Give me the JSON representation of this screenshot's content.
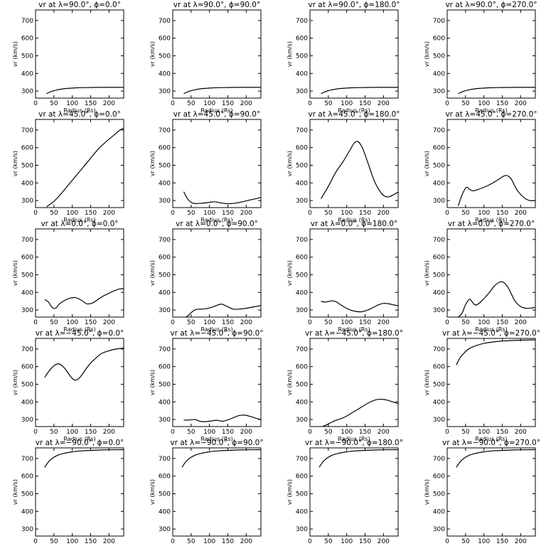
{
  "chart_data": [
    {
      "type": "line",
      "title": "vr at λ=90.0°, ϕ=0.0°",
      "xlabel": "Radius (Rs)",
      "ylabel": "vr (km/s)",
      "xlim": [
        0,
        240
      ],
      "ylim": [
        260,
        760
      ],
      "xticks": [
        0,
        50,
        100,
        150,
        200
      ],
      "yticks": [
        300,
        400,
        500,
        600,
        700
      ],
      "series": [
        {
          "x": [
            30,
            40,
            50,
            60,
            70,
            80,
            100,
            120,
            150,
            180,
            210,
            240
          ],
          "y": [
            285,
            295,
            302,
            307,
            311,
            314,
            317,
            319,
            320,
            321,
            321,
            321
          ]
        }
      ]
    },
    {
      "type": "line",
      "title": "vr at λ=90.0°, ϕ=90.0°",
      "xlabel": "Radius (Rs)",
      "ylabel": "vr (km/s)",
      "xlim": [
        0,
        240
      ],
      "ylim": [
        260,
        760
      ],
      "xticks": [
        0,
        50,
        100,
        150,
        200
      ],
      "yticks": [
        300,
        400,
        500,
        600,
        700
      ],
      "series": [
        {
          "x": [
            30,
            40,
            50,
            60,
            70,
            80,
            100,
            120,
            150,
            180,
            210,
            240
          ],
          "y": [
            285,
            295,
            302,
            307,
            311,
            314,
            317,
            319,
            320,
            321,
            321,
            321
          ]
        }
      ]
    },
    {
      "type": "line",
      "title": "vr at λ=90.0°, ϕ=180.0°",
      "xlabel": "Radius (Rs)",
      "ylabel": "vr (km/s)",
      "xlim": [
        0,
        240
      ],
      "ylim": [
        260,
        760
      ],
      "xticks": [
        0,
        50,
        100,
        150,
        200
      ],
      "yticks": [
        300,
        400,
        500,
        600,
        700
      ],
      "series": [
        {
          "x": [
            30,
            40,
            50,
            60,
            70,
            80,
            100,
            120,
            150,
            180,
            210,
            240
          ],
          "y": [
            285,
            295,
            302,
            307,
            311,
            314,
            317,
            319,
            320,
            321,
            321,
            321
          ]
        }
      ]
    },
    {
      "type": "line",
      "title": "vr at λ=90.0°, ϕ=270.0°",
      "xlabel": "Radius (Rs)",
      "ylabel": "vr (km/s)",
      "xlim": [
        0,
        240
      ],
      "ylim": [
        260,
        760
      ],
      "xticks": [
        0,
        50,
        100,
        150,
        200
      ],
      "yticks": [
        300,
        400,
        500,
        600,
        700
      ],
      "series": [
        {
          "x": [
            30,
            40,
            50,
            60,
            70,
            80,
            100,
            120,
            150,
            180,
            210,
            240
          ],
          "y": [
            285,
            295,
            302,
            307,
            311,
            314,
            317,
            319,
            320,
            321,
            321,
            321
          ]
        }
      ]
    },
    {
      "type": "line",
      "title": "vr at λ=45.0°, ϕ=0.0°",
      "xlabel": "Radius (Rs)",
      "ylabel": "vr (km/s)",
      "xlim": [
        0,
        240
      ],
      "ylim": [
        260,
        760
      ],
      "xticks": [
        0,
        50,
        100,
        150,
        200
      ],
      "yticks": [
        300,
        400,
        500,
        600,
        700
      ],
      "series": [
        {
          "x": [
            30,
            50,
            70,
            90,
            110,
            130,
            150,
            170,
            190,
            210,
            230,
            240
          ],
          "y": [
            265,
            295,
            340,
            390,
            440,
            490,
            540,
            590,
            630,
            665,
            700,
            710
          ]
        }
      ]
    },
    {
      "type": "line",
      "title": "vr at λ=45.0°, ϕ=90.0°",
      "xlabel": "Radius (Rs)",
      "ylabel": "vr (km/s)",
      "xlim": [
        0,
        240
      ],
      "ylim": [
        260,
        760
      ],
      "xticks": [
        0,
        50,
        100,
        150,
        200
      ],
      "yticks": [
        300,
        400,
        500,
        600,
        700
      ],
      "series": [
        {
          "x": [
            30,
            40,
            50,
            60,
            80,
            100,
            115,
            130,
            150,
            170,
            190,
            210,
            230,
            240
          ],
          "y": [
            350,
            310,
            290,
            283,
            285,
            290,
            293,
            287,
            282,
            285,
            293,
            303,
            312,
            318
          ]
        }
      ]
    },
    {
      "type": "line",
      "title": "vr at λ=45.0°, ϕ=180.0°",
      "xlabel": "Radius (Rs)",
      "ylabel": "vr (km/s)",
      "xlim": [
        0,
        240
      ],
      "ylim": [
        260,
        760
      ],
      "xticks": [
        0,
        50,
        100,
        150,
        200
      ],
      "yticks": [
        300,
        400,
        500,
        600,
        700
      ],
      "series": [
        {
          "x": [
            30,
            50,
            70,
            90,
            110,
            120,
            130,
            140,
            150,
            160,
            170,
            180,
            195,
            210,
            225,
            240
          ],
          "y": [
            310,
            380,
            460,
            520,
            590,
            625,
            635,
            610,
            560,
            500,
            440,
            390,
            340,
            320,
            330,
            348
          ]
        }
      ]
    },
    {
      "type": "line",
      "title": "vr at λ=45.0°, ϕ=270.0°",
      "xlabel": "Radius (Rs)",
      "ylabel": "vr (km/s)",
      "xlim": [
        0,
        240
      ],
      "ylim": [
        260,
        760
      ],
      "xticks": [
        0,
        50,
        100,
        150,
        200
      ],
      "yticks": [
        300,
        400,
        500,
        600,
        700
      ],
      "series": [
        {
          "x": [
            30,
            40,
            50,
            55,
            60,
            70,
            80,
            100,
            120,
            140,
            155,
            165,
            175,
            190,
            210,
            225,
            240
          ],
          "y": [
            270,
            330,
            370,
            375,
            365,
            355,
            360,
            375,
            395,
            420,
            440,
            440,
            420,
            360,
            315,
            300,
            300
          ]
        }
      ]
    },
    {
      "type": "line",
      "title": "vr at λ=0.0°, ϕ=0.0°",
      "xlabel": "Radius (Rs)",
      "ylabel": "vr (km/s)",
      "xlim": [
        0,
        240
      ],
      "ylim": [
        260,
        760
      ],
      "xticks": [
        0,
        50,
        100,
        150,
        200
      ],
      "yticks": [
        300,
        400,
        500,
        600,
        700
      ],
      "series": [
        {
          "x": [
            25,
            35,
            45,
            55,
            65,
            80,
            95,
            110,
            125,
            140,
            155,
            170,
            185,
            200,
            215,
            230,
            240
          ],
          "y": [
            360,
            345,
            315,
            310,
            335,
            355,
            368,
            370,
            355,
            335,
            340,
            360,
            380,
            395,
            410,
            420,
            420
          ]
        }
      ]
    },
    {
      "type": "line",
      "title": "vr at λ=0.0°, ϕ=90.0°",
      "xlabel": "Radius (Rs)",
      "ylabel": "vr (km/s)",
      "xlim": [
        0,
        240
      ],
      "ylim": [
        260,
        760
      ],
      "xticks": [
        0,
        50,
        100,
        150,
        200
      ],
      "yticks": [
        300,
        400,
        500,
        600,
        700
      ],
      "series": [
        {
          "x": [
            30,
            40,
            50,
            60,
            70,
            90,
            110,
            125,
            135,
            150,
            165,
            180,
            200,
            220,
            240
          ],
          "y": [
            255,
            265,
            285,
            300,
            305,
            307,
            318,
            330,
            333,
            318,
            305,
            305,
            310,
            318,
            325
          ]
        }
      ]
    },
    {
      "type": "line",
      "title": "vr at λ=0.0°, ϕ=180.0°",
      "xlabel": "Radius (Rs)",
      "ylabel": "vr (km/s)",
      "xlim": [
        0,
        240
      ],
      "ylim": [
        260,
        760
      ],
      "xticks": [
        0,
        50,
        100,
        150,
        200
      ],
      "yticks": [
        300,
        400,
        500,
        600,
        700
      ],
      "series": [
        {
          "x": [
            30,
            40,
            50,
            60,
            70,
            80,
            95,
            110,
            125,
            140,
            155,
            170,
            185,
            200,
            215,
            230,
            240
          ],
          "y": [
            350,
            345,
            348,
            352,
            348,
            335,
            315,
            300,
            292,
            290,
            298,
            312,
            328,
            338,
            335,
            328,
            325
          ]
        }
      ]
    },
    {
      "type": "line",
      "title": "vr at λ=0.0°, ϕ=270.0°",
      "xlabel": "Radius (Rs)",
      "ylabel": "vr (km/s)",
      "xlim": [
        0,
        240
      ],
      "ylim": [
        260,
        760
      ],
      "xticks": [
        0,
        50,
        100,
        150,
        200
      ],
      "yticks": [
        300,
        400,
        500,
        600,
        700
      ],
      "series": [
        {
          "x": [
            30,
            40,
            50,
            60,
            65,
            75,
            85,
            100,
            115,
            130,
            145,
            155,
            165,
            175,
            185,
            200,
            215,
            230,
            240
          ],
          "y": [
            260,
            280,
            330,
            360,
            355,
            330,
            335,
            365,
            400,
            440,
            460,
            455,
            430,
            390,
            350,
            320,
            310,
            312,
            315
          ]
        }
      ]
    },
    {
      "type": "line",
      "title": "vr at λ=−45.0°, ϕ=0.0°",
      "xlabel": "Radius (Rs)",
      "ylabel": "vr (km/s)",
      "xlim": [
        0,
        240
      ],
      "ylim": [
        260,
        760
      ],
      "xticks": [
        0,
        50,
        100,
        150,
        200
      ],
      "yticks": [
        300,
        400,
        500,
        600,
        700
      ],
      "series": [
        {
          "x": [
            25,
            35,
            45,
            55,
            65,
            75,
            85,
            95,
            105,
            115,
            125,
            135,
            150,
            165,
            180,
            200,
            220,
            240
          ],
          "y": [
            540,
            570,
            595,
            612,
            615,
            600,
            575,
            545,
            525,
            528,
            550,
            580,
            620,
            650,
            675,
            690,
            700,
            705
          ]
        }
      ]
    },
    {
      "type": "line",
      "title": "vr at λ=−45.0°, ϕ=90.0°",
      "xlabel": "Radius (Rs)",
      "ylabel": "vr (km/s)",
      "xlim": [
        0,
        240
      ],
      "ylim": [
        260,
        760
      ],
      "xticks": [
        0,
        50,
        100,
        150,
        200
      ],
      "yticks": [
        300,
        400,
        500,
        600,
        700
      ],
      "series": [
        {
          "x": [
            30,
            45,
            60,
            75,
            90,
            105,
            120,
            135,
            150,
            165,
            180,
            195,
            210,
            225,
            240
          ],
          "y": [
            297,
            297,
            300,
            290,
            288,
            292,
            296,
            290,
            298,
            310,
            322,
            325,
            318,
            308,
            300
          ]
        }
      ]
    },
    {
      "type": "line",
      "title": "vr at λ=−45.0°, ϕ=180.0°",
      "xlabel": "Radius (Rs)",
      "ylabel": "vr (km/s)",
      "xlim": [
        0,
        240
      ],
      "ylim": [
        260,
        760
      ],
      "xticks": [
        0,
        50,
        100,
        150,
        200
      ],
      "yticks": [
        300,
        400,
        500,
        600,
        700
      ],
      "series": [
        {
          "x": [
            25,
            40,
            55,
            70,
            85,
            100,
            120,
            140,
            160,
            180,
            195,
            210,
            225,
            240
          ],
          "y": [
            255,
            265,
            280,
            295,
            305,
            320,
            345,
            370,
            395,
            412,
            415,
            410,
            400,
            390
          ]
        }
      ]
    },
    {
      "type": "line",
      "title": "vr at λ=−45.0°, ϕ=270.0°",
      "xlabel": "Radius (Rs)",
      "ylabel": "vr (km/s)",
      "xlim": [
        0,
        240
      ],
      "ylim": [
        260,
        760
      ],
      "xticks": [
        0,
        50,
        100,
        150,
        200
      ],
      "yticks": [
        300,
        400,
        500,
        600,
        700
      ],
      "series": [
        {
          "x": [
            25,
            35,
            45,
            55,
            65,
            80,
            100,
            125,
            150,
            175,
            200,
            240
          ],
          "y": [
            610,
            650,
            675,
            695,
            708,
            720,
            732,
            740,
            745,
            748,
            750,
            752
          ]
        }
      ]
    },
    {
      "type": "line",
      "title": "vr at λ=−90.0°, ϕ=0.0°",
      "xlabel": "Radius (Rs)",
      "ylabel": "vr (km/s)",
      "xlim": [
        0,
        240
      ],
      "ylim": [
        260,
        760
      ],
      "xticks": [
        0,
        50,
        100,
        150,
        200
      ],
      "yticks": [
        300,
        400,
        500,
        600,
        700
      ],
      "series": [
        {
          "x": [
            25,
            35,
            45,
            55,
            65,
            80,
            100,
            125,
            150,
            175,
            200,
            240
          ],
          "y": [
            650,
            680,
            700,
            713,
            722,
            730,
            738,
            743,
            746,
            748,
            749,
            750
          ]
        }
      ]
    },
    {
      "type": "line",
      "title": "vr at λ=−90.0°, ϕ=90.0°",
      "xlabel": "Radius (Rs)",
      "ylabel": "vr (km/s)",
      "xlim": [
        0,
        240
      ],
      "ylim": [
        260,
        760
      ],
      "xticks": [
        0,
        50,
        100,
        150,
        200
      ],
      "yticks": [
        300,
        400,
        500,
        600,
        700
      ],
      "series": [
        {
          "x": [
            25,
            35,
            45,
            55,
            65,
            80,
            100,
            125,
            150,
            175,
            200,
            240
          ],
          "y": [
            650,
            680,
            700,
            713,
            722,
            730,
            738,
            743,
            746,
            748,
            749,
            750
          ]
        }
      ]
    },
    {
      "type": "line",
      "title": "vr at λ=−90.0°, ϕ=180.0°",
      "xlabel": "Radius (Rs)",
      "ylabel": "vr (km/s)",
      "xlim": [
        0,
        240
      ],
      "ylim": [
        260,
        760
      ],
      "xticks": [
        0,
        50,
        100,
        150,
        200
      ],
      "yticks": [
        300,
        400,
        500,
        600,
        700
      ],
      "series": [
        {
          "x": [
            25,
            35,
            45,
            55,
            65,
            80,
            100,
            125,
            150,
            175,
            200,
            240
          ],
          "y": [
            650,
            680,
            700,
            713,
            722,
            730,
            738,
            743,
            746,
            748,
            749,
            750
          ]
        }
      ]
    },
    {
      "type": "line",
      "title": "vr at λ=−90.0°, ϕ=270.0°",
      "xlabel": "Radius (Rs)",
      "ylabel": "vr (km/s)",
      "xlim": [
        0,
        240
      ],
      "ylim": [
        260,
        760
      ],
      "xticks": [
        0,
        50,
        100,
        150,
        200
      ],
      "yticks": [
        300,
        400,
        500,
        600,
        700
      ],
      "series": [
        {
          "x": [
            25,
            35,
            45,
            55,
            65,
            80,
            100,
            125,
            150,
            175,
            200,
            240
          ],
          "y": [
            650,
            680,
            700,
            713,
            722,
            730,
            738,
            743,
            746,
            748,
            749,
            750
          ]
        }
      ]
    }
  ]
}
